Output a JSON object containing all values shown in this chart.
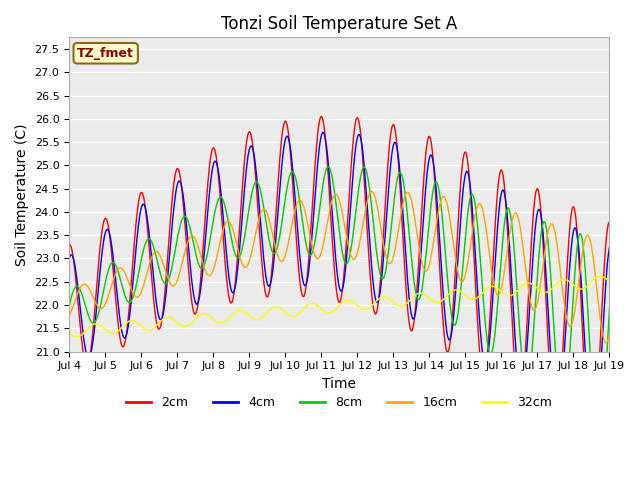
{
  "title": "Tonzi Soil Temperature Set A",
  "xlabel": "Time",
  "ylabel": "Soil Temperature (C)",
  "ylim": [
    21.0,
    27.75
  ],
  "xlim": [
    0,
    360
  ],
  "annotation": "TZ_fmet",
  "annotation_color": "#8B0000",
  "annotation_bg": "#FFFFCC",
  "plot_bg": "#EBEBEB",
  "grid_color": "white",
  "line_colors": {
    "2cm": "#FF0000",
    "4cm": "#0000FF",
    "8cm": "#00CC00",
    "16cm": "#FFA500",
    "32cm": "#FFFF00"
  },
  "legend_labels": [
    "2cm",
    "4cm",
    "8cm",
    "16cm",
    "32cm"
  ],
  "xtick_positions": [
    0,
    24,
    48,
    72,
    96,
    120,
    144,
    168,
    192,
    216,
    240,
    264,
    288,
    312,
    336,
    360
  ],
  "xtick_labels": [
    "Jul 4",
    "Jul 5",
    "Jul 6",
    "Jul 7",
    "Jul 8",
    "Jul 9",
    "Jul 10",
    "Jul 11",
    "Jul 12",
    "Jul 13",
    "Jul 14",
    "Jul 15",
    "Jul 16",
    "Jul 17",
    "Jul 18",
    "Jul 19"
  ],
  "ytick_positions": [
    21.0,
    21.5,
    22.0,
    22.5,
    23.0,
    23.5,
    24.0,
    24.5,
    25.0,
    25.5,
    26.0,
    26.5,
    27.0,
    27.5
  ]
}
